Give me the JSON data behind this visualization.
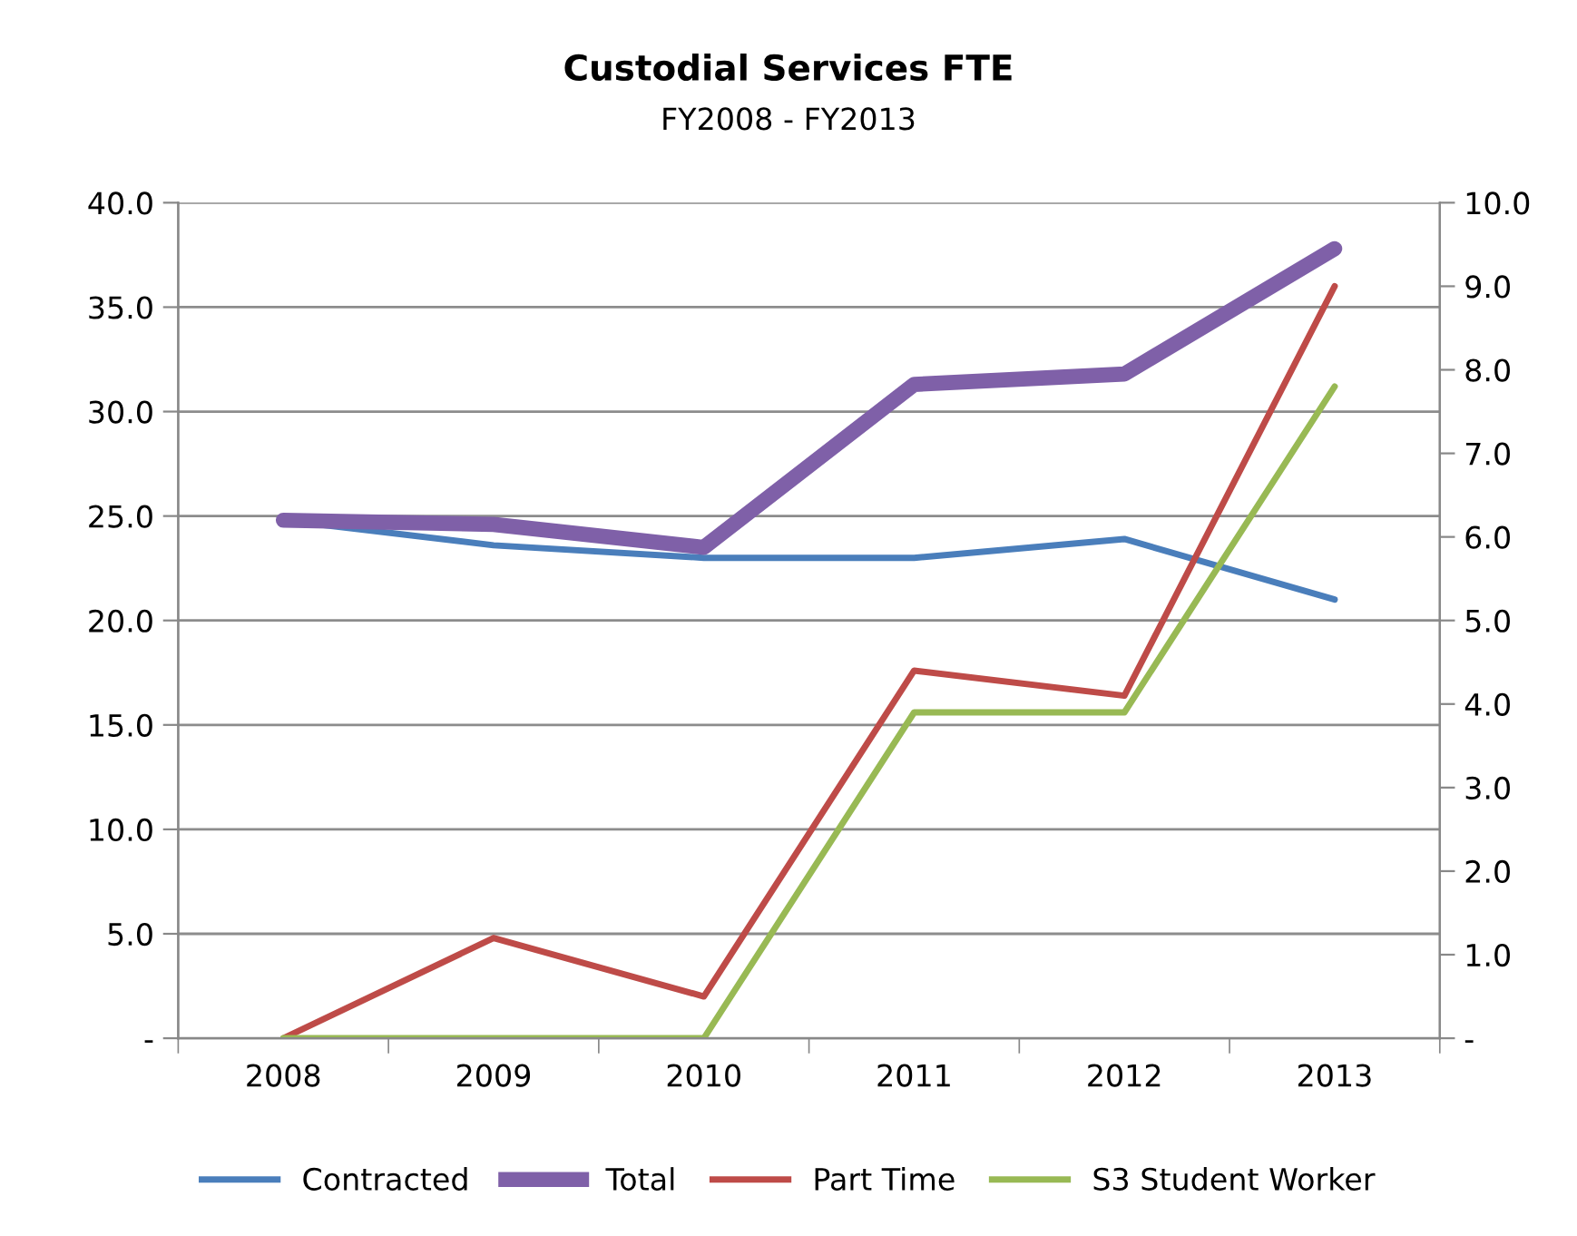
{
  "chart_data": {
    "type": "line",
    "title": "Custodial Services FTE",
    "subtitle": "FY2008 - FY2013",
    "categories": [
      "2008",
      "2009",
      "2010",
      "2011",
      "2012",
      "2013"
    ],
    "series": [
      {
        "name": "Contracted",
        "color": "#4a7ebb",
        "values": [
          24.8,
          23.6,
          23.0,
          23.0,
          23.9,
          21.0
        ]
      },
      {
        "name": "Total",
        "color": "#7f60a8",
        "values": [
          24.8,
          24.6,
          23.5,
          31.3,
          31.8,
          37.8
        ]
      },
      {
        "name": "Part Time",
        "color": "#be4b48",
        "values": [
          0,
          1.2,
          0.5,
          4.4,
          4.1,
          9.0
        ],
        "axis": "y2"
      },
      {
        "name": "S3 Student Worker",
        "color": "#98b954",
        "values": [
          0,
          0,
          0,
          3.9,
          3.9,
          7.8
        ],
        "axis": "y2"
      }
    ],
    "ylim": [
      0,
      40
    ],
    "yticks": [
      {
        "value": 0,
        "label": "-"
      },
      {
        "value": 5,
        "label": "5.0"
      },
      {
        "value": 10,
        "label": "10.0"
      },
      {
        "value": 15,
        "label": "15.0"
      },
      {
        "value": 20,
        "label": "20.0"
      },
      {
        "value": 25,
        "label": "25.0"
      },
      {
        "value": 30,
        "label": "30.0"
      },
      {
        "value": 35,
        "label": "35.0"
      },
      {
        "value": 40,
        "label": "40.0"
      }
    ],
    "y2lim": [
      0,
      10
    ],
    "y2ticks": [
      {
        "value": 0,
        "label": "-"
      },
      {
        "value": 1,
        "label": "1.0"
      },
      {
        "value": 2,
        "label": "2.0"
      },
      {
        "value": 3,
        "label": "3.0"
      },
      {
        "value": 4,
        "label": "4.0"
      },
      {
        "value": 5,
        "label": "5.0"
      },
      {
        "value": 6,
        "label": "6.0"
      },
      {
        "value": 7,
        "label": "7.0"
      },
      {
        "value": 8,
        "label": "8.0"
      },
      {
        "value": 9,
        "label": "9.0"
      },
      {
        "value": 10,
        "label": "10.0"
      }
    ],
    "grid": "y",
    "legend": "bottom",
    "marker": "none",
    "line_style": "solid"
  }
}
